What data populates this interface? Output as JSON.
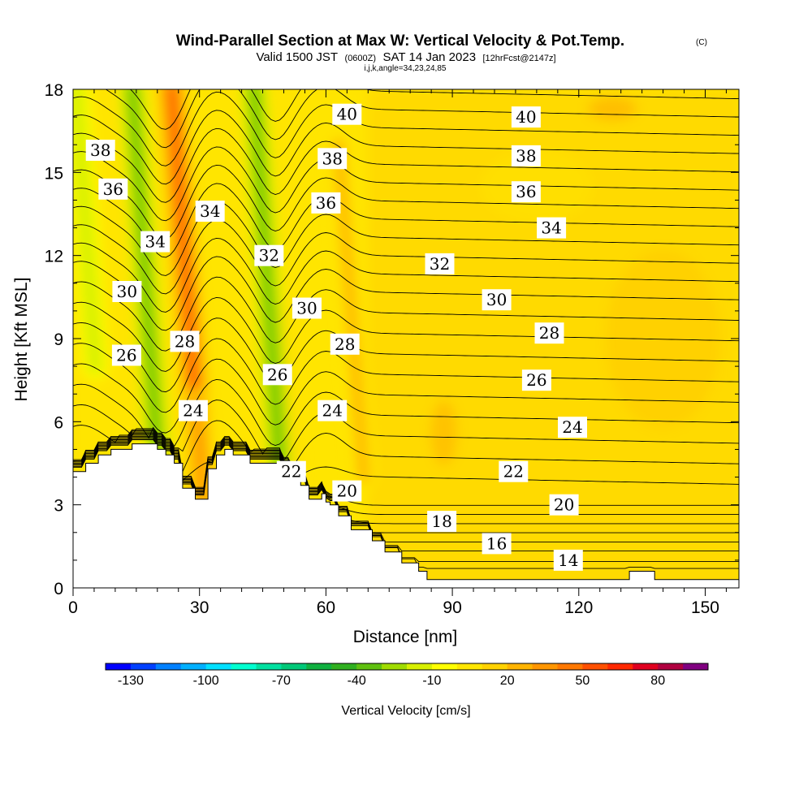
{
  "chart_data": {
    "type": "heatmap",
    "title": "Wind-Parallel Section at Max W: Vertical Velocity & Pot.Temp.",
    "title_mark": "(C)",
    "subtitle_parts": [
      "Valid 1500 JST",
      "(0600Z)",
      "SAT 14 Jan 2023",
      "[12hrFcst@2147z]"
    ],
    "subtitle2": "i,j,k,angle=34,23,24,85",
    "xlabel": "Distance [nm]",
    "ylabel": "Height [Kft MSL]",
    "xlim": [
      0,
      158
    ],
    "ylim": [
      0,
      18
    ],
    "xticks": [
      "0",
      "30",
      "60",
      "90",
      "120",
      "150"
    ],
    "xtick_values": [
      0,
      30,
      60,
      90,
      120,
      150
    ],
    "yticks": [
      "0",
      "3",
      "6",
      "9",
      "12",
      "15",
      "18"
    ],
    "ytick_values": [
      0,
      3,
      6,
      9,
      12,
      15,
      18
    ],
    "colorbar": {
      "label": "Vertical Velocity [cm/s]",
      "range": [
        -140,
        100
      ],
      "bin_width": 10,
      "tick_labels": [
        "-130",
        "-100",
        "-70",
        "-40",
        "-10",
        "20",
        "50",
        "80"
      ],
      "tick_values": [
        -130,
        -100,
        -70,
        -40,
        -10,
        20,
        50,
        80
      ],
      "colors": [
        "#0000ff",
        "#0040ff",
        "#0080ff",
        "#00b0ff",
        "#00e0ff",
        "#00ffd0",
        "#00e0a0",
        "#00c878",
        "#10b040",
        "#30b020",
        "#60c010",
        "#a0dc00",
        "#d8f000",
        "#ffff00",
        "#ffe600",
        "#ffd200",
        "#ffb400",
        "#ff9600",
        "#ff7800",
        "#ff5000",
        "#ff2800",
        "#e00020",
        "#b00040",
        "#800080"
      ]
    },
    "velocity_features": [
      {
        "kind": "updraft",
        "x": 27,
        "y_range": [
          3.5,
          18
        ],
        "peak_cm_s": 50
      },
      {
        "kind": "updraft",
        "x": 50,
        "y_range": [
          4,
          10
        ],
        "peak_cm_s": 20
      },
      {
        "kind": "updraft",
        "x": 66,
        "y_range": [
          4,
          16
        ],
        "peak_cm_s": 20
      },
      {
        "kind": "updraft",
        "x": 30,
        "y_range": [
          3.2,
          7
        ],
        "peak_cm_s": 30
      },
      {
        "kind": "downdraft",
        "x": 17,
        "y_range": [
          5,
          18
        ],
        "peak_cm_s": -40
      },
      {
        "kind": "downdraft",
        "x": 46,
        "y_range": [
          4.5,
          18
        ],
        "peak_cm_s": -40
      },
      {
        "kind": "downdraft",
        "x": 3,
        "y_range": [
          8,
          18
        ],
        "peak_cm_s": -20
      }
    ],
    "theta_contours": {
      "interval": 1,
      "labeled_levels": [
        14,
        16,
        18,
        20,
        22,
        24,
        26,
        28,
        30,
        32,
        34,
        36,
        38,
        40
      ],
      "labels": [
        {
          "text": "38",
          "x": 6.5,
          "y": 15.8
        },
        {
          "text": "36",
          "x": 9.5,
          "y": 14.4
        },
        {
          "text": "34",
          "x": 19.5,
          "y": 12.5
        },
        {
          "text": "34",
          "x": 32.5,
          "y": 13.6
        },
        {
          "text": "30",
          "x": 12.8,
          "y": 10.7
        },
        {
          "text": "26",
          "x": 12.7,
          "y": 8.4
        },
        {
          "text": "28",
          "x": 26.5,
          "y": 8.9
        },
        {
          "text": "24",
          "x": 28.5,
          "y": 6.4
        },
        {
          "text": "32",
          "x": 46.5,
          "y": 12.0
        },
        {
          "text": "30",
          "x": 55.5,
          "y": 10.1
        },
        {
          "text": "26",
          "x": 48.5,
          "y": 7.7
        },
        {
          "text": "22",
          "x": 51.8,
          "y": 4.2
        },
        {
          "text": "40",
          "x": 65.0,
          "y": 17.1
        },
        {
          "text": "38",
          "x": 61.5,
          "y": 15.5
        },
        {
          "text": "36",
          "x": 60.0,
          "y": 13.9
        },
        {
          "text": "28",
          "x": 64.5,
          "y": 8.8
        },
        {
          "text": "24",
          "x": 61.5,
          "y": 6.4
        },
        {
          "text": "20",
          "x": 65.0,
          "y": 3.5
        },
        {
          "text": "40",
          "x": 107.5,
          "y": 17.0
        },
        {
          "text": "38",
          "x": 107.5,
          "y": 15.6
        },
        {
          "text": "36",
          "x": 107.5,
          "y": 14.3
        },
        {
          "text": "34",
          "x": 113.5,
          "y": 13.0
        },
        {
          "text": "32",
          "x": 87.0,
          "y": 11.7
        },
        {
          "text": "30",
          "x": 100.5,
          "y": 10.4
        },
        {
          "text": "28",
          "x": 113.0,
          "y": 9.2
        },
        {
          "text": "26",
          "x": 110.0,
          "y": 7.5
        },
        {
          "text": "24",
          "x": 118.5,
          "y": 5.8
        },
        {
          "text": "22",
          "x": 104.5,
          "y": 4.2
        },
        {
          "text": "20",
          "x": 116.5,
          "y": 3.0
        },
        {
          "text": "18",
          "x": 87.5,
          "y": 2.4
        },
        {
          "text": "16",
          "x": 100.5,
          "y": 1.6
        },
        {
          "text": "14",
          "x": 117.5,
          "y": 1.0
        }
      ]
    },
    "terrain": {
      "x": [
        0,
        3,
        3,
        6,
        6,
        9,
        9,
        14,
        14,
        20,
        20,
        22,
        22,
        24,
        24,
        26,
        26,
        29,
        29,
        32,
        32,
        34,
        34,
        36,
        36,
        38,
        38,
        42,
        42,
        46,
        46,
        50,
        50,
        52,
        52,
        54,
        54,
        56,
        56,
        59,
        59,
        60,
        60,
        61,
        61,
        63,
        63,
        66,
        66,
        71,
        71,
        74,
        74,
        78,
        78,
        82,
        82,
        84,
        84,
        86,
        86,
        132,
        132,
        138,
        138,
        158
      ],
      "y": [
        4.2,
        4.2,
        4.5,
        4.5,
        4.8,
        4.8,
        5.0,
        5.0,
        5.2,
        5.2,
        5.0,
        5.0,
        4.8,
        4.8,
        4.5,
        4.5,
        3.6,
        3.6,
        3.2,
        3.2,
        4.3,
        4.3,
        4.8,
        4.8,
        5.0,
        5.0,
        4.8,
        4.8,
        4.5,
        4.5,
        4.5,
        4.5,
        4.2,
        4.2,
        4.0,
        4.0,
        3.7,
        3.7,
        3.2,
        3.2,
        3.4,
        3.4,
        3.1,
        3.1,
        3.0,
        3.0,
        2.6,
        2.6,
        2.1,
        2.1,
        1.7,
        1.7,
        1.3,
        1.3,
        0.9,
        0.9,
        0.6,
        0.6,
        0.3,
        0.3,
        0.3,
        0.3,
        0.6,
        0.6,
        0.3,
        0.3
      ]
    }
  }
}
